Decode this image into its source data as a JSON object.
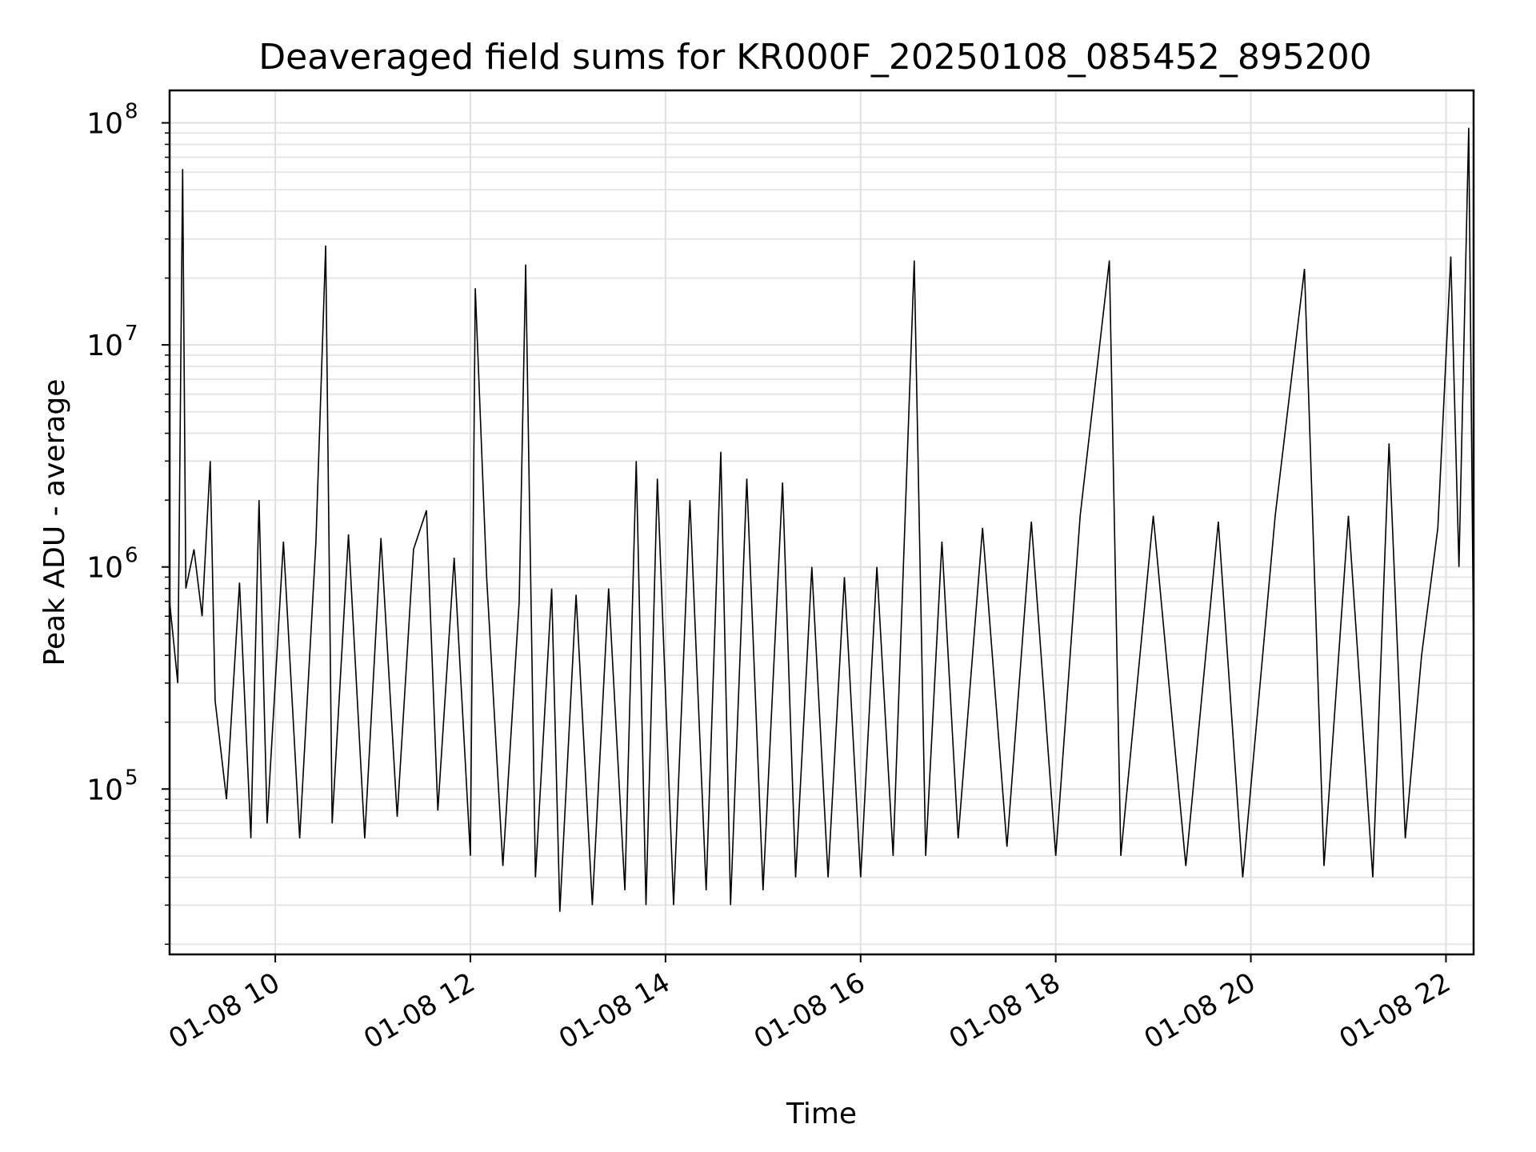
{
  "chart_data": {
    "type": "line",
    "title": "Deaveraged field sums for KR000F_20250108_085452_895200",
    "xlabel": "Time",
    "ylabel": "Peak ADU - average",
    "x_scale": "time",
    "y_scale": "log",
    "grid": true,
    "xlim": [
      "2025-01-08 08:55",
      "2025-01-08 22:17"
    ],
    "ylim": [
      18000,
      140000000
    ],
    "x_ticks": [
      {
        "value": "2025-01-08 10:00",
        "label": "01-08 10"
      },
      {
        "value": "2025-01-08 12:00",
        "label": "01-08 12"
      },
      {
        "value": "2025-01-08 14:00",
        "label": "01-08 14"
      },
      {
        "value": "2025-01-08 16:00",
        "label": "01-08 16"
      },
      {
        "value": "2025-01-08 18:00",
        "label": "01-08 18"
      },
      {
        "value": "2025-01-08 20:00",
        "label": "01-08 20"
      },
      {
        "value": "2025-01-08 22:00",
        "label": "01-08 22"
      }
    ],
    "y_ticks": [
      {
        "value": 100000,
        "base": "10",
        "exp": "5"
      },
      {
        "value": 1000000,
        "base": "10",
        "exp": "6"
      },
      {
        "value": 10000000,
        "base": "10",
        "exp": "7"
      },
      {
        "value": 100000000,
        "base": "10",
        "exp": "8"
      }
    ],
    "line_color": "#000000",
    "series": [
      {
        "points": [
          [
            "2025-01-08 08:55",
            700000
          ],
          [
            "2025-01-08 09:00",
            300000
          ],
          [
            "2025-01-08 09:03",
            62000000
          ],
          [
            "2025-01-08 09:05",
            800000
          ],
          [
            "2025-01-08 09:10",
            1200000
          ],
          [
            "2025-01-08 09:15",
            600000
          ],
          [
            "2025-01-08 09:20",
            3000000
          ],
          [
            "2025-01-08 09:23",
            250000
          ],
          [
            "2025-01-08 09:30",
            90000
          ],
          [
            "2025-01-08 09:38",
            850000
          ],
          [
            "2025-01-08 09:45",
            60000
          ],
          [
            "2025-01-08 09:50",
            2000000
          ],
          [
            "2025-01-08 09:55",
            70000
          ],
          [
            "2025-01-08 10:05",
            1300000
          ],
          [
            "2025-01-08 10:15",
            60000
          ],
          [
            "2025-01-08 10:25",
            1300000
          ],
          [
            "2025-01-08 10:31",
            28000000
          ],
          [
            "2025-01-08 10:35",
            70000
          ],
          [
            "2025-01-08 10:45",
            1400000
          ],
          [
            "2025-01-08 10:55",
            60000
          ],
          [
            "2025-01-08 11:05",
            1350000
          ],
          [
            "2025-01-08 11:15",
            75000
          ],
          [
            "2025-01-08 11:25",
            1200000
          ],
          [
            "2025-01-08 11:33",
            1800000
          ],
          [
            "2025-01-08 11:40",
            80000
          ],
          [
            "2025-01-08 11:50",
            1100000
          ],
          [
            "2025-01-08 12:00",
            50000
          ],
          [
            "2025-01-08 12:03",
            18000000
          ],
          [
            "2025-01-08 12:10",
            900000
          ],
          [
            "2025-01-08 12:20",
            45000
          ],
          [
            "2025-01-08 12:30",
            700000
          ],
          [
            "2025-01-08 12:34",
            23000000
          ],
          [
            "2025-01-08 12:40",
            40000
          ],
          [
            "2025-01-08 12:50",
            800000
          ],
          [
            "2025-01-08 12:55",
            28000
          ],
          [
            "2025-01-08 13:05",
            750000
          ],
          [
            "2025-01-08 13:15",
            30000
          ],
          [
            "2025-01-08 13:25",
            800000
          ],
          [
            "2025-01-08 13:35",
            35000
          ],
          [
            "2025-01-08 13:42",
            3000000
          ],
          [
            "2025-01-08 13:48",
            30000
          ],
          [
            "2025-01-08 13:55",
            2500000
          ],
          [
            "2025-01-08 14:05",
            30000
          ],
          [
            "2025-01-08 14:15",
            2000000
          ],
          [
            "2025-01-08 14:25",
            35000
          ],
          [
            "2025-01-08 14:34",
            3300000
          ],
          [
            "2025-01-08 14:40",
            30000
          ],
          [
            "2025-01-08 14:50",
            2500000
          ],
          [
            "2025-01-08 15:00",
            35000
          ],
          [
            "2025-01-08 15:12",
            2400000
          ],
          [
            "2025-01-08 15:20",
            40000
          ],
          [
            "2025-01-08 15:30",
            1000000
          ],
          [
            "2025-01-08 15:40",
            40000
          ],
          [
            "2025-01-08 15:50",
            900000
          ],
          [
            "2025-01-08 16:00",
            40000
          ],
          [
            "2025-01-08 16:10",
            1000000
          ],
          [
            "2025-01-08 16:20",
            50000
          ],
          [
            "2025-01-08 16:33",
            24000000
          ],
          [
            "2025-01-08 16:40",
            50000
          ],
          [
            "2025-01-08 16:50",
            1300000
          ],
          [
            "2025-01-08 17:00",
            60000
          ],
          [
            "2025-01-08 17:15",
            1500000
          ],
          [
            "2025-01-08 17:30",
            55000
          ],
          [
            "2025-01-08 17:45",
            1600000
          ],
          [
            "2025-01-08 18:00",
            50000
          ],
          [
            "2025-01-08 18:15",
            1700000
          ],
          [
            "2025-01-08 18:33",
            24000000
          ],
          [
            "2025-01-08 18:40",
            50000
          ],
          [
            "2025-01-08 19:00",
            1700000
          ],
          [
            "2025-01-08 19:20",
            45000
          ],
          [
            "2025-01-08 19:40",
            1600000
          ],
          [
            "2025-01-08 19:55",
            40000
          ],
          [
            "2025-01-08 20:15",
            1700000
          ],
          [
            "2025-01-08 20:33",
            22000000
          ],
          [
            "2025-01-08 20:45",
            45000
          ],
          [
            "2025-01-08 21:00",
            1700000
          ],
          [
            "2025-01-08 21:15",
            40000
          ],
          [
            "2025-01-08 21:25",
            3600000
          ],
          [
            "2025-01-08 21:35",
            60000
          ],
          [
            "2025-01-08 21:45",
            400000
          ],
          [
            "2025-01-08 21:55",
            1500000
          ],
          [
            "2025-01-08 22:03",
            25000000
          ],
          [
            "2025-01-08 22:08",
            1000000
          ],
          [
            "2025-01-08 22:14",
            95000000
          ],
          [
            "2025-01-08 22:17",
            400000
          ]
        ]
      }
    ]
  }
}
